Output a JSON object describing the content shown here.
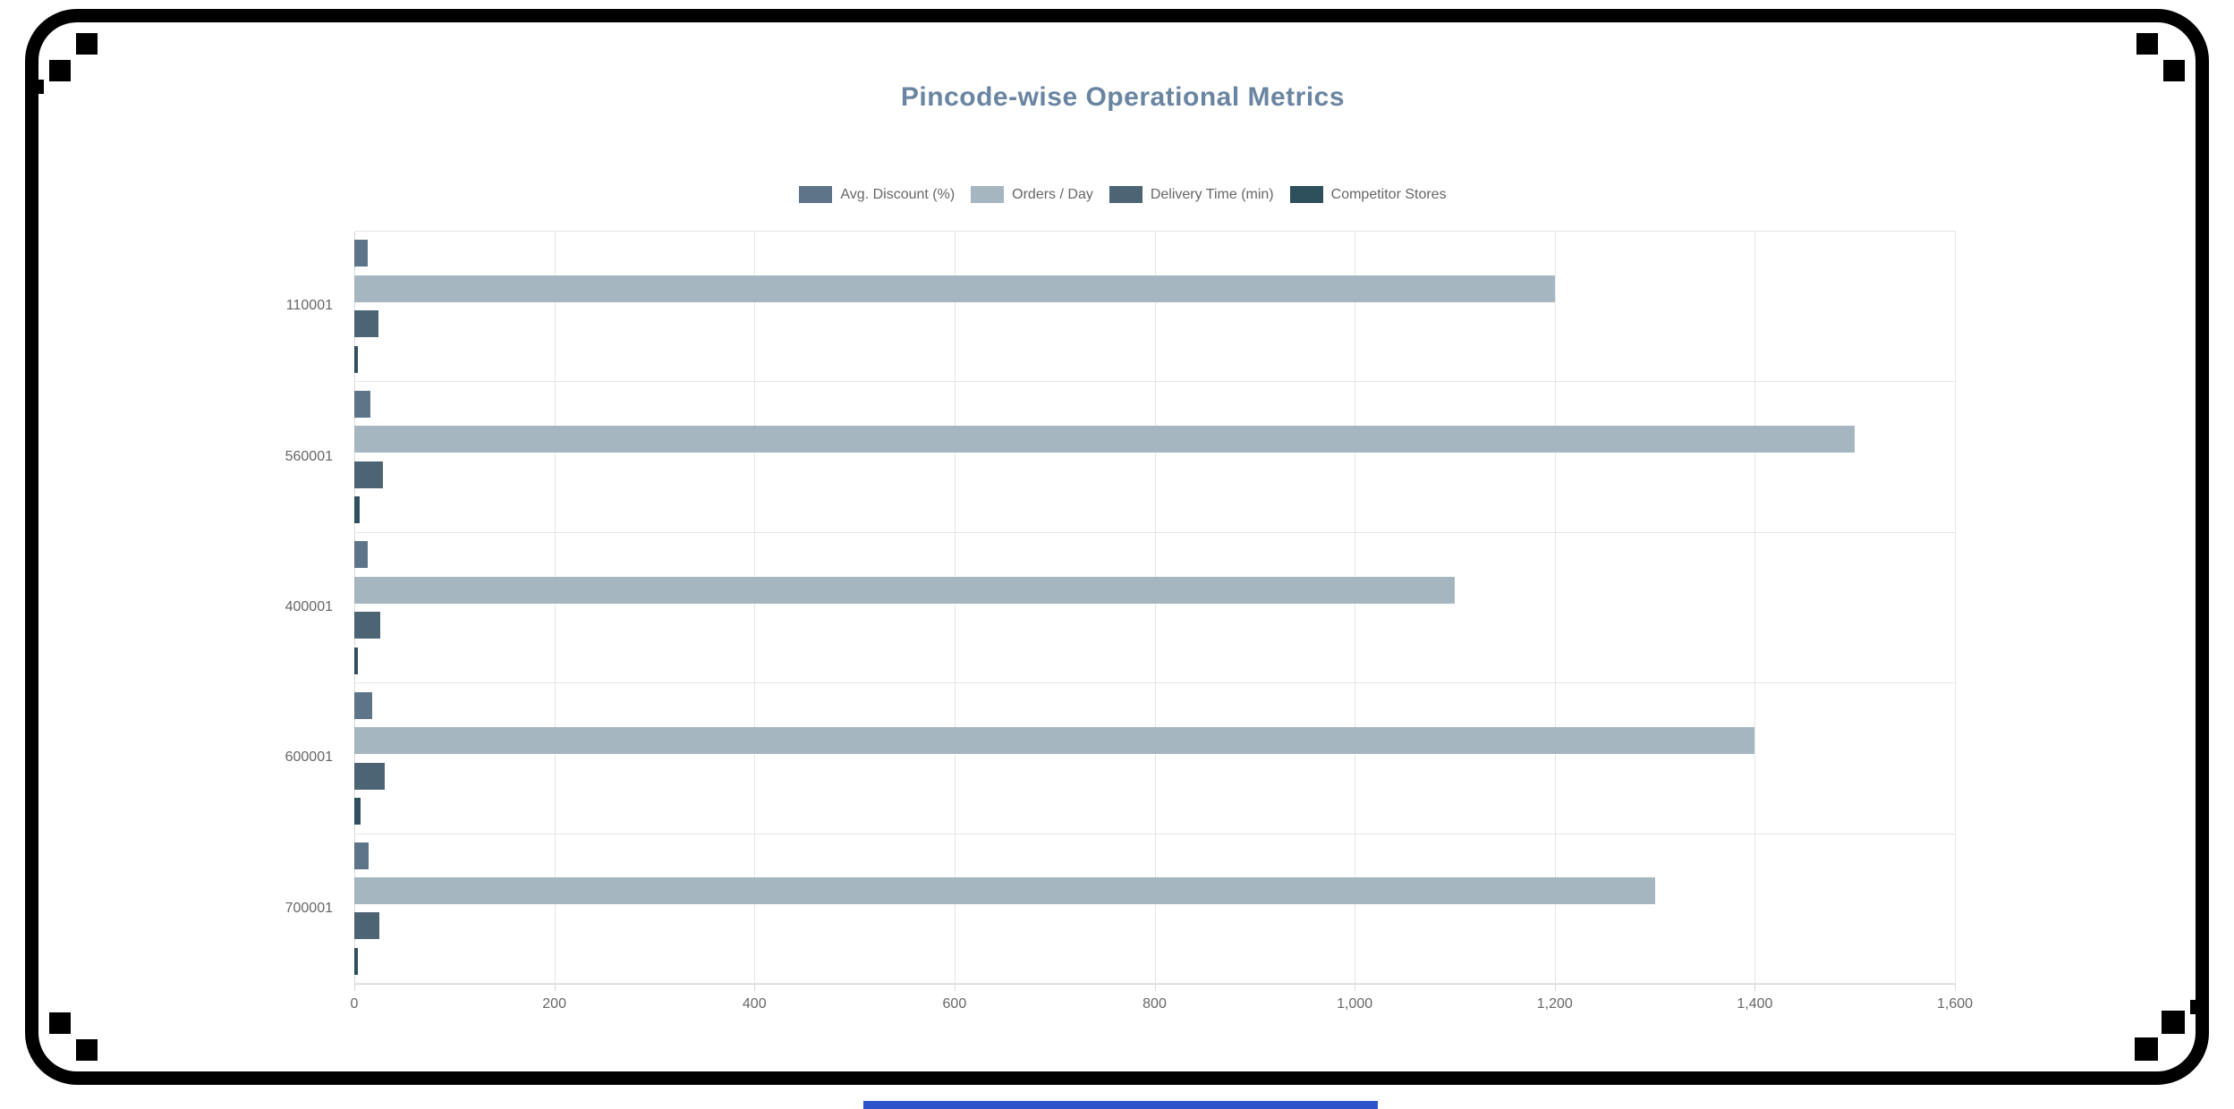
{
  "chart_data": {
    "type": "bar",
    "orientation": "horizontal",
    "title": "Pincode-wise Operational Metrics",
    "categories": [
      "110001",
      "560001",
      "400001",
      "600001",
      "700001"
    ],
    "series": [
      {
        "name": "Avg. Discount (%)",
        "color": "#5e7489",
        "values": [
          13,
          16,
          13,
          18,
          14
        ]
      },
      {
        "name": "Orders / Day",
        "color": "#a6b6c1",
        "values": [
          1200,
          1500,
          1100,
          1400,
          1300
        ]
      },
      {
        "name": "Delivery Time (min)",
        "color": "#4c6474",
        "values": [
          24,
          29,
          26,
          30,
          25
        ]
      },
      {
        "name": "Competitor Stores",
        "color": "#2e4f5c",
        "values": [
          4,
          5,
          4,
          6,
          4
        ]
      }
    ],
    "xlim": [
      0,
      1600
    ],
    "x_ticks": [
      0,
      200,
      400,
      600,
      800,
      1000,
      1200,
      1400,
      1600
    ],
    "x_tick_labels": [
      "0",
      "200",
      "400",
      "600",
      "800",
      "1,000",
      "1,200",
      "1,400",
      "1,600"
    ],
    "grid": "vertical-gridlines",
    "legend_position": "top-center"
  },
  "colors": {
    "title": "#6a85a1",
    "legend_text": "#666666",
    "axis_text": "#666666",
    "grid": "#e6e6e6",
    "axis_line": "#d9d9d9",
    "frame": "#000000",
    "bottom_bar": "#2d53cb"
  }
}
